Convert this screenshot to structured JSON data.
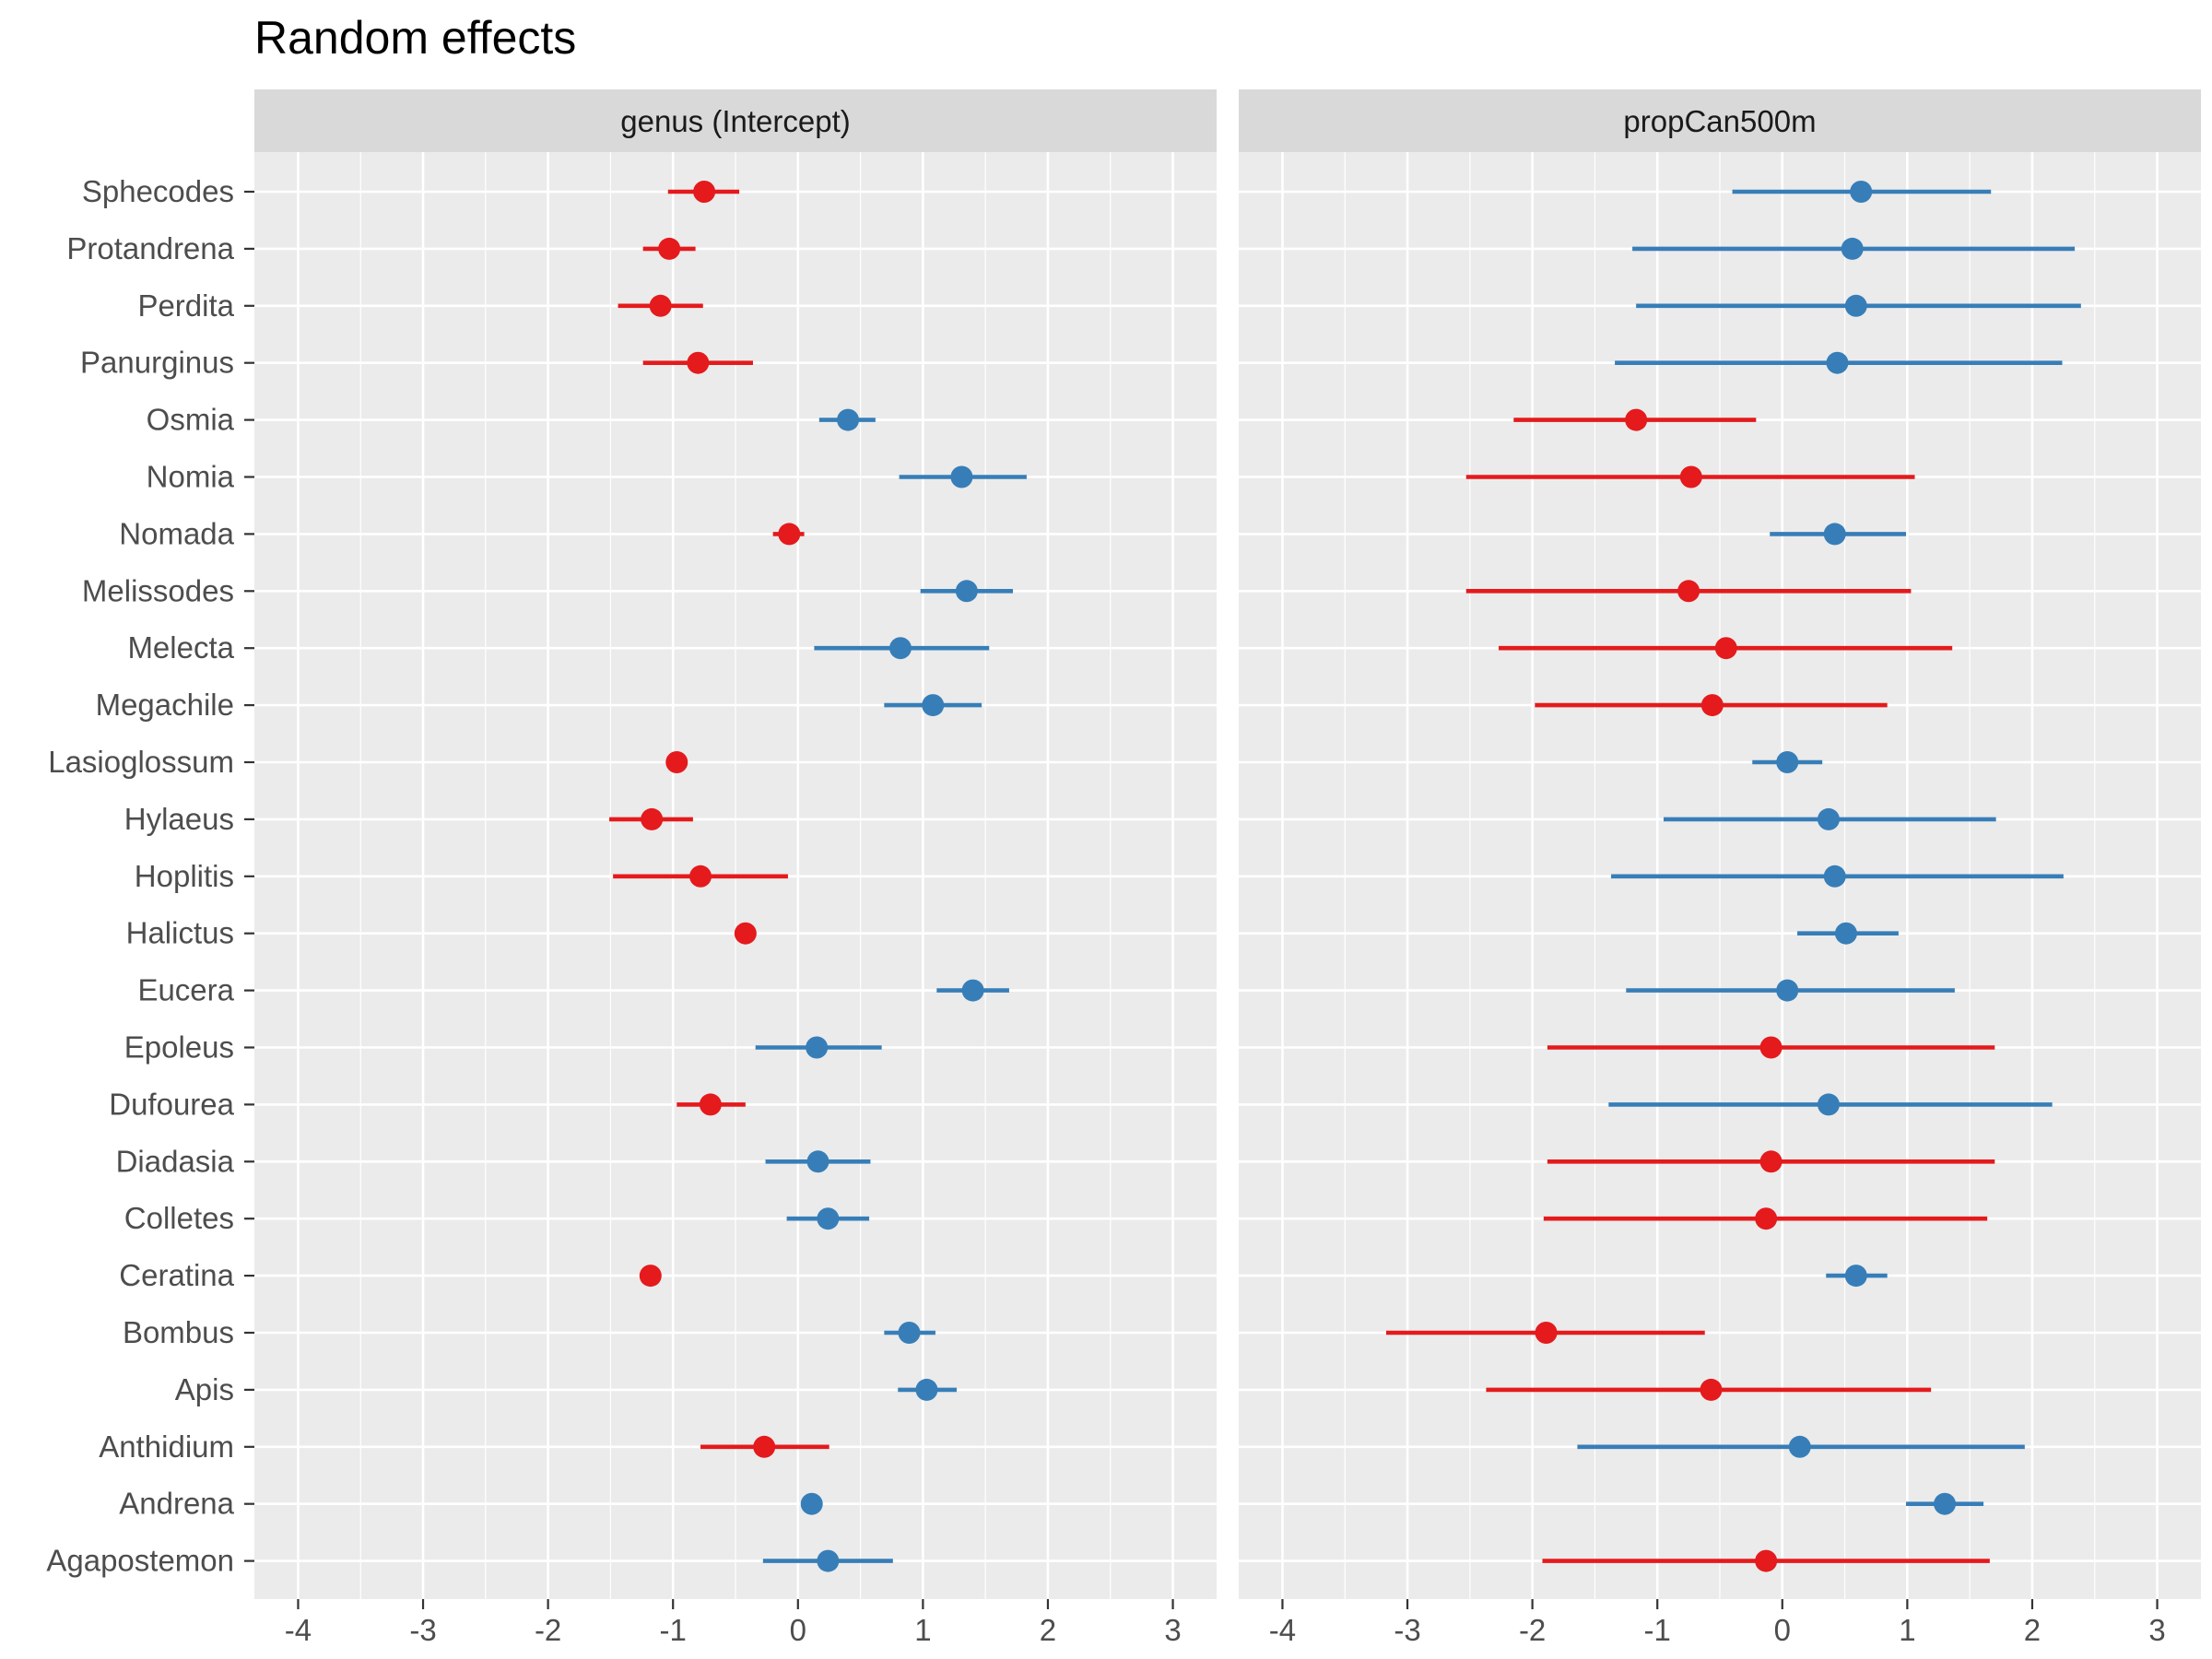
{
  "title": "Random effects",
  "colors": {
    "positive": "#377EB8",
    "negative": "#E41A1C",
    "panel_bg": "#EBEBEB",
    "strip_bg": "#D9D9D9",
    "grid": "#FFFFFF"
  },
  "chart_data": {
    "type": "scatter",
    "subtype": "dot-and-whisker (faceted)",
    "title": "Random effects",
    "xlim": [
      -4.35,
      3.35
    ],
    "x_ticks": [
      -4,
      -3,
      -2,
      -1,
      0,
      1,
      2,
      3
    ],
    "x_tick_labels": [
      "-4",
      "-3",
      "-2",
      "-1",
      "0",
      "1",
      "2",
      "3"
    ],
    "categories": [
      "Sphecodes",
      "Protandrena",
      "Perdita",
      "Panurginus",
      "Osmia",
      "Nomia",
      "Nomada",
      "Melissodes",
      "Melecta",
      "Megachile",
      "Lasioglossum",
      "Hylaeus",
      "Hoplitis",
      "Halictus",
      "Eucera",
      "Epoleus",
      "Dufourea",
      "Diadasia",
      "Colletes",
      "Ceratina",
      "Bombus",
      "Apis",
      "Anthidium",
      "Andrena",
      "Agapostemon"
    ],
    "grid": true,
    "legend": "none",
    "panels": [
      {
        "strip": "genus (Intercept)",
        "estimate": [
          -0.75,
          -1.03,
          -1.1,
          -0.8,
          0.4,
          1.31,
          -0.07,
          1.35,
          0.82,
          1.08,
          -0.97,
          -1.17,
          -0.78,
          -0.42,
          1.4,
          0.15,
          -0.7,
          0.16,
          0.24,
          -1.18,
          0.89,
          1.03,
          -0.27,
          0.11,
          0.24
        ],
        "lower": [
          -1.04,
          -1.24,
          -1.44,
          -1.24,
          0.17,
          0.81,
          -0.2,
          0.98,
          0.13,
          0.69,
          -1.02,
          -1.51,
          -1.48,
          -0.47,
          1.11,
          -0.34,
          -0.97,
          -0.26,
          -0.09,
          -1.23,
          0.69,
          0.8,
          -0.78,
          0.07,
          -0.28
        ],
        "upper": [
          -0.47,
          -0.82,
          -0.76,
          -0.36,
          0.62,
          1.83,
          0.05,
          1.72,
          1.53,
          1.47,
          -0.92,
          -0.84,
          -0.08,
          -0.37,
          1.69,
          0.67,
          -0.42,
          0.58,
          0.57,
          -1.13,
          1.1,
          1.27,
          0.25,
          0.15,
          0.76
        ],
        "color": [
          "negative",
          "negative",
          "negative",
          "negative",
          "positive",
          "positive",
          "negative",
          "positive",
          "positive",
          "positive",
          "negative",
          "negative",
          "negative",
          "negative",
          "positive",
          "positive",
          "negative",
          "positive",
          "positive",
          "negative",
          "positive",
          "positive",
          "negative",
          "positive",
          "positive"
        ]
      },
      {
        "strip": "propCan500m",
        "estimate": [
          0.63,
          0.56,
          0.59,
          0.44,
          -1.17,
          -0.73,
          0.42,
          -0.75,
          -0.45,
          -0.56,
          0.04,
          0.37,
          0.42,
          0.51,
          0.04,
          -0.09,
          0.37,
          -0.09,
          -0.13,
          0.59,
          -1.89,
          -0.57,
          0.14,
          1.3,
          -0.13
        ],
        "lower": [
          -0.4,
          -1.2,
          -1.17,
          -1.34,
          -2.15,
          -2.53,
          -0.1,
          -2.53,
          -2.27,
          -1.98,
          -0.24,
          -0.95,
          -1.37,
          0.12,
          -1.25,
          -1.88,
          -1.39,
          -1.88,
          -1.91,
          0.35,
          -3.17,
          -2.37,
          -1.64,
          0.99,
          -1.92
        ],
        "upper": [
          1.67,
          2.34,
          2.39,
          2.24,
          -0.21,
          1.06,
          0.99,
          1.03,
          1.36,
          0.84,
          0.32,
          1.71,
          2.25,
          0.93,
          1.38,
          1.7,
          2.16,
          1.7,
          1.64,
          0.84,
          -0.62,
          1.19,
          1.94,
          1.61,
          1.66
        ],
        "color": [
          "positive",
          "positive",
          "positive",
          "positive",
          "negative",
          "negative",
          "positive",
          "negative",
          "negative",
          "negative",
          "positive",
          "positive",
          "positive",
          "positive",
          "positive",
          "negative",
          "positive",
          "negative",
          "negative",
          "positive",
          "negative",
          "negative",
          "positive",
          "positive",
          "negative"
        ]
      }
    ]
  }
}
